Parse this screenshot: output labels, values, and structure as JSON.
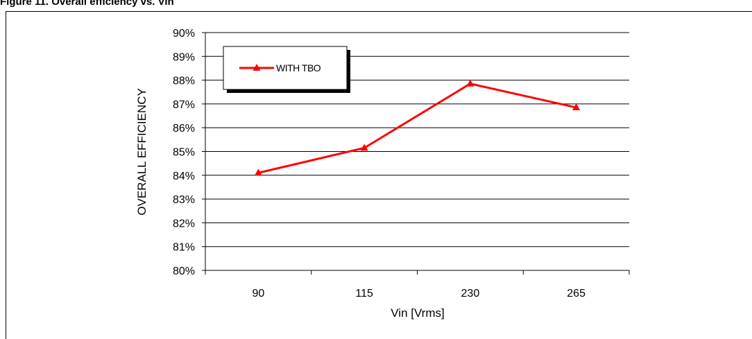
{
  "caption": "Figure 11. Overall efficiency vs. Vin",
  "chart_data": {
    "type": "line",
    "categories": [
      "90",
      "115",
      "230",
      "265"
    ],
    "series": [
      {
        "name": "WITH TBO",
        "values": [
          84.1,
          85.15,
          87.85,
          86.85
        ],
        "color": "#ff0000",
        "marker": "triangle"
      }
    ],
    "xlabel": "Vin [Vrms]",
    "ylabel": "OVERALL EFFICIENCY",
    "ylim": [
      80,
      90
    ],
    "yticks": [
      80,
      81,
      82,
      83,
      84,
      85,
      86,
      87,
      88,
      89,
      90
    ],
    "ytick_suffix": "%",
    "grid": true,
    "legend_position": "top-left"
  }
}
